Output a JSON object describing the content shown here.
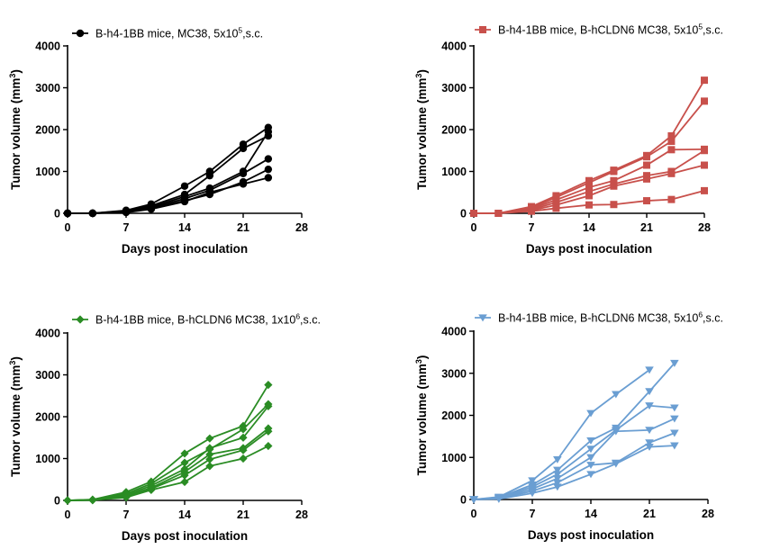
{
  "chart_data": [
    {
      "type": "line",
      "title_main": "B-h4-1BB mice, MC38, 5x10",
      "title_sup": "5",
      "title_tail": ",s.c.",
      "xlabel": "Days post inoculation",
      "ylabel_main": "Tumor volume (mm",
      "ylabel_sup": "3",
      "ylabel_tail": ")",
      "xlim": [
        0,
        28
      ],
      "ylim": [
        0,
        4000
      ],
      "xticks": [
        "0",
        "7",
        "14",
        "21",
        "28"
      ],
      "yticks": [
        "0",
        "1000",
        "2000",
        "3000",
        "4000"
      ],
      "color": "#000000",
      "marker": "circle",
      "x": [
        0,
        3,
        7,
        10,
        14,
        17,
        21,
        24
      ],
      "series": [
        {
          "values": [
            0,
            0,
            70,
            220,
            650,
            1000,
            1650,
            2050
          ]
        },
        {
          "values": [
            0,
            0,
            60,
            180,
            450,
            900,
            1550,
            1850
          ]
        },
        {
          "values": [
            0,
            0,
            50,
            150,
            400,
            600,
            1000,
            1950
          ]
        },
        {
          "values": [
            0,
            0,
            40,
            130,
            350,
            550,
            950,
            1300
          ]
        },
        {
          "values": [
            0,
            0,
            30,
            110,
            300,
            450,
            750,
            1050
          ]
        },
        {
          "values": [
            0,
            0,
            20,
            100,
            280,
            500,
            700,
            850
          ]
        }
      ]
    },
    {
      "type": "line",
      "title_main": "B-h4-1BB mice, B-hCLDN6 MC38, 5x10",
      "title_sup": "5",
      "title_tail": ",s.c.",
      "xlabel": "Days post inoculation",
      "ylabel_main": "Tumor volume (mm",
      "ylabel_sup": "3",
      "ylabel_tail": ")",
      "xlim": [
        0,
        28
      ],
      "ylim": [
        0,
        4000
      ],
      "xticks": [
        "0",
        "7",
        "14",
        "21",
        "28"
      ],
      "yticks": [
        "0",
        "1000",
        "2000",
        "3000",
        "4000"
      ],
      "color": "#c8504b",
      "marker": "square",
      "x": [
        0,
        3,
        7,
        10,
        14,
        17,
        21,
        24,
        28
      ],
      "series": [
        {
          "values": [
            0,
            0,
            160,
            420,
            780,
            1030,
            1380,
            1850,
            3180
          ]
        },
        {
          "values": [
            0,
            0,
            130,
            380,
            730,
            1000,
            1350,
            1720,
            2680
          ]
        },
        {
          "values": [
            0,
            0,
            110,
            320,
            620,
            780,
            1150,
            1520,
            1530
          ]
        },
        {
          "values": [
            0,
            0,
            90,
            260,
            520,
            700,
            900,
            1000,
            1500
          ]
        },
        {
          "values": [
            0,
            0,
            70,
            200,
            420,
            650,
            820,
            950,
            1150
          ]
        },
        {
          "values": [
            0,
            0,
            50,
            120,
            200,
            210,
            300,
            330,
            540
          ]
        }
      ]
    },
    {
      "type": "line",
      "title_main": "B-h4-1BB mice, B-hCLDN6 MC38, 1x10",
      "title_sup": "6",
      "title_tail": ",s.c.",
      "xlabel": "Days post inoculation",
      "ylabel_main": "Tumor volume (mm",
      "ylabel_sup": "3",
      "ylabel_tail": ")",
      "xlim": [
        0,
        28
      ],
      "ylim": [
        0,
        4000
      ],
      "xticks": [
        "0",
        "7",
        "14",
        "21",
        "28"
      ],
      "yticks": [
        "0",
        "1000",
        "2000",
        "3000",
        "4000"
      ],
      "color": "#2a8c24",
      "marker": "diamond",
      "x": [
        0,
        3,
        7,
        10,
        14,
        17,
        21,
        24
      ],
      "series": [
        {
          "values": [
            0,
            20,
            200,
            450,
            1120,
            1480,
            1780,
            2760
          ]
        },
        {
          "values": [
            0,
            15,
            160,
            400,
            900,
            1220,
            1700,
            2300
          ]
        },
        {
          "values": [
            0,
            12,
            130,
            350,
            750,
            1250,
            1500,
            2250
          ]
        },
        {
          "values": [
            0,
            10,
            110,
            300,
            680,
            1100,
            1250,
            1720
          ]
        },
        {
          "values": [
            0,
            8,
            90,
            280,
            600,
            980,
            1200,
            1650
          ]
        },
        {
          "values": [
            0,
            5,
            70,
            250,
            440,
            820,
            1000,
            1300
          ]
        }
      ]
    },
    {
      "type": "line",
      "title_main": "B-h4-1BB mice, B-hCLDN6 MC38, 5x10",
      "title_sup": "6",
      "title_tail": ",s.c.",
      "xlabel": "Days post inoculation",
      "ylabel_main": "Tumor volume (mm",
      "ylabel_sup": "3",
      "ylabel_tail": ")",
      "xlim": [
        0,
        28
      ],
      "ylim": [
        0,
        4000
      ],
      "xticks": [
        "0",
        "7",
        "14",
        "21",
        "28"
      ],
      "yticks": [
        "0",
        "1000",
        "2000",
        "3000",
        "4000"
      ],
      "color": "#6a9ed2",
      "marker": "triangle-down",
      "x": [
        0,
        3,
        7,
        10,
        14,
        17,
        21,
        24
      ],
      "series": [
        {
          "values": [
            0,
            60,
            450,
            950,
            2050,
            2500,
            3080,
            null
          ]
        },
        {
          "values": [
            0,
            50,
            350,
            700,
            1400,
            1700,
            2570,
            3240
          ]
        },
        {
          "values": [
            0,
            40,
            300,
            600,
            1200,
            1650,
            2230,
            2180
          ]
        },
        {
          "values": [
            0,
            30,
            250,
            500,
            1000,
            1620,
            1650,
            1920
          ]
        },
        {
          "values": [
            0,
            20,
            200,
            400,
            820,
            870,
            1350,
            1580
          ]
        },
        {
          "values": [
            0,
            10,
            150,
            300,
            600,
            850,
            1250,
            1280
          ]
        }
      ]
    }
  ]
}
